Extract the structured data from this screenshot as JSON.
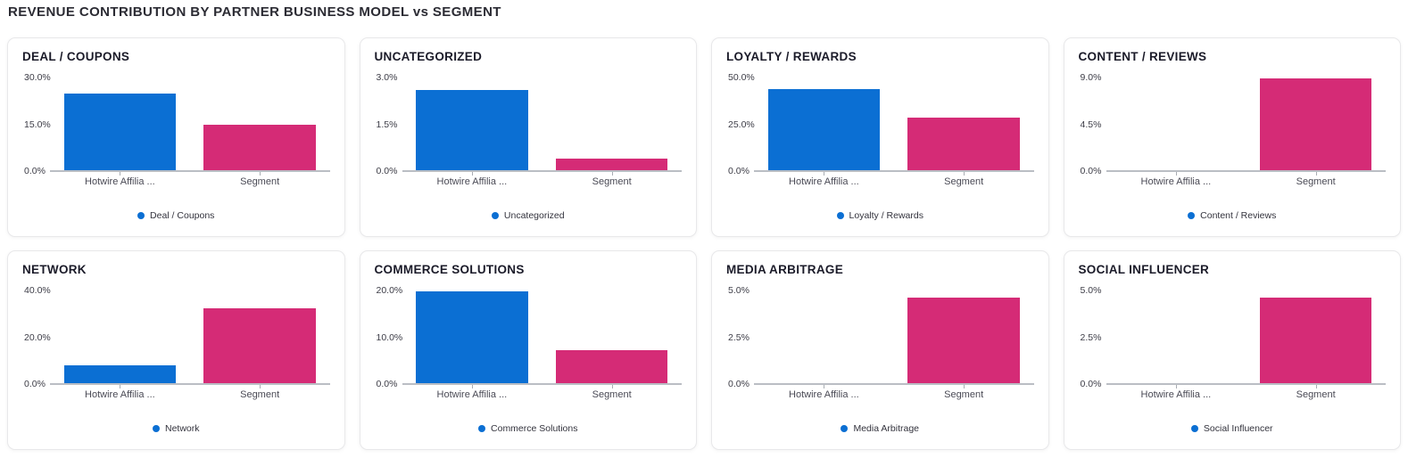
{
  "page": {
    "title": "REVENUE CONTRIBUTION BY PARTNER BUSINESS MODEL vs SEGMENT"
  },
  "colors": {
    "partner_bar": "#0b6fd3",
    "segment_bar": "#d52b76",
    "legend_dot": "#0b6fd3",
    "axis_line": "#babec4"
  },
  "chart_data": [
    {
      "type": "bar",
      "title": "DEAL / COUPONS",
      "legend": "Deal / Coupons",
      "categories": [
        "Hotwire Affilia ...",
        "Segment"
      ],
      "values": [
        25.0,
        15.0
      ],
      "unit": "%",
      "ylim": [
        0,
        30
      ],
      "yticks": [
        "30.0%",
        "15.0%",
        "0.0%"
      ],
      "xlabel": "",
      "ylabel": ""
    },
    {
      "type": "bar",
      "title": "UNCATEGORIZED",
      "legend": "Uncategorized",
      "categories": [
        "Hotwire Affilia ...",
        "Segment"
      ],
      "values": [
        2.6,
        0.4
      ],
      "unit": "%",
      "ylim": [
        0,
        3
      ],
      "yticks": [
        "3.0%",
        "1.5%",
        "0.0%"
      ],
      "xlabel": "",
      "ylabel": ""
    },
    {
      "type": "bar",
      "title": "LOYALTY / REWARDS",
      "legend": "Loyalty / Rewards",
      "categories": [
        "Hotwire Affilia ...",
        "Segment"
      ],
      "values": [
        44.0,
        28.6
      ],
      "unit": "%",
      "ylim": [
        0,
        50
      ],
      "yticks": [
        "50.0%",
        "25.0%",
        "0.0%"
      ],
      "xlabel": "",
      "ylabel": ""
    },
    {
      "type": "bar",
      "title": "CONTENT / REVIEWS",
      "legend": "Content / Reviews",
      "categories": [
        "Hotwire Affilia ...",
        "Segment"
      ],
      "values": [
        0,
        8.9
      ],
      "unit": "%",
      "ylim": [
        0,
        9
      ],
      "yticks": [
        "9.0%",
        "4.5%",
        "0.0%"
      ],
      "xlabel": "",
      "ylabel": ""
    },
    {
      "type": "bar",
      "title": "NETWORK",
      "legend": "Network",
      "categories": [
        "Hotwire Affilia ...",
        "Segment"
      ],
      "values": [
        8.0,
        32.4
      ],
      "unit": "%",
      "ylim": [
        0,
        40
      ],
      "yticks": [
        "40.0%",
        "20.0%",
        "0.0%"
      ],
      "xlabel": "",
      "ylabel": ""
    },
    {
      "type": "bar",
      "title": "COMMERCE SOLUTIONS",
      "legend": "Commerce Solutions",
      "categories": [
        "Hotwire Affilia ...",
        "Segment"
      ],
      "values": [
        19.8,
        7.2
      ],
      "unit": "%",
      "ylim": [
        0,
        20
      ],
      "yticks": [
        "20.0%",
        "10.0%",
        "0.0%"
      ],
      "xlabel": "",
      "ylabel": ""
    },
    {
      "type": "bar",
      "title": "MEDIA ARBITRAGE",
      "legend": "Media Arbitrage",
      "categories": [
        "Hotwire Affilia ...",
        "Segment"
      ],
      "values": [
        0,
        4.6
      ],
      "unit": "%",
      "ylim": [
        0,
        5
      ],
      "yticks": [
        "5.0%",
        "2.5%",
        "0.0%"
      ],
      "xlabel": "",
      "ylabel": ""
    },
    {
      "type": "bar",
      "title": "SOCIAL INFLUENCER",
      "legend": "Social Influencer",
      "categories": [
        "Hotwire Affilia ...",
        "Segment"
      ],
      "values": [
        0,
        4.6
      ],
      "unit": "%",
      "ylim": [
        0,
        5
      ],
      "yticks": [
        "5.0%",
        "2.5%",
        "0.0%"
      ],
      "xlabel": "",
      "ylabel": ""
    }
  ]
}
